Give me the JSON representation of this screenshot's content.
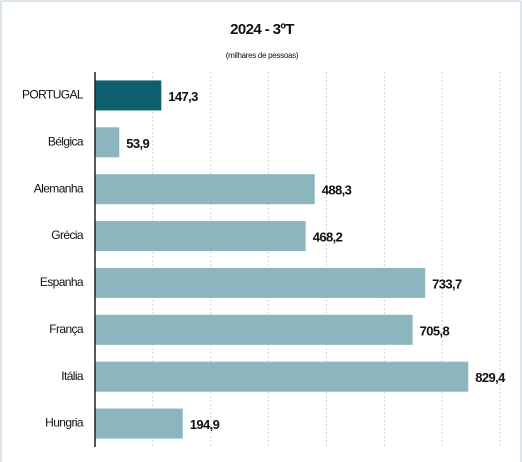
{
  "chart_data": {
    "type": "barh",
    "title": "2024 - 3ºT",
    "subtitle": "(milhares de pessoas)",
    "categories": [
      "PORTUGAL",
      "Bélgica",
      "Alemanha",
      "Grécia",
      "Espanha",
      "França",
      "Itália",
      "Hungria"
    ],
    "values": [
      147.3,
      53.9,
      488.3,
      468.2,
      733.7,
      705.8,
      829.4,
      194.9
    ],
    "value_labels": [
      "147,3",
      "53,9",
      "488,3",
      "468,2",
      "733,7",
      "705,8",
      "829,4",
      "194,9"
    ],
    "colors": [
      "#0e5f6d",
      "#8bb6bd",
      "#8bb6bd",
      "#8bb6bd",
      "#8bb6bd",
      "#8bb6bd",
      "#8bb6bd",
      "#8bb6bd"
    ],
    "xlim": [
      0,
      900
    ],
    "xticks": [
      0,
      128.6,
      257.1,
      385.7,
      514.3,
      642.9,
      771.4,
      900
    ],
    "grid": true
  }
}
